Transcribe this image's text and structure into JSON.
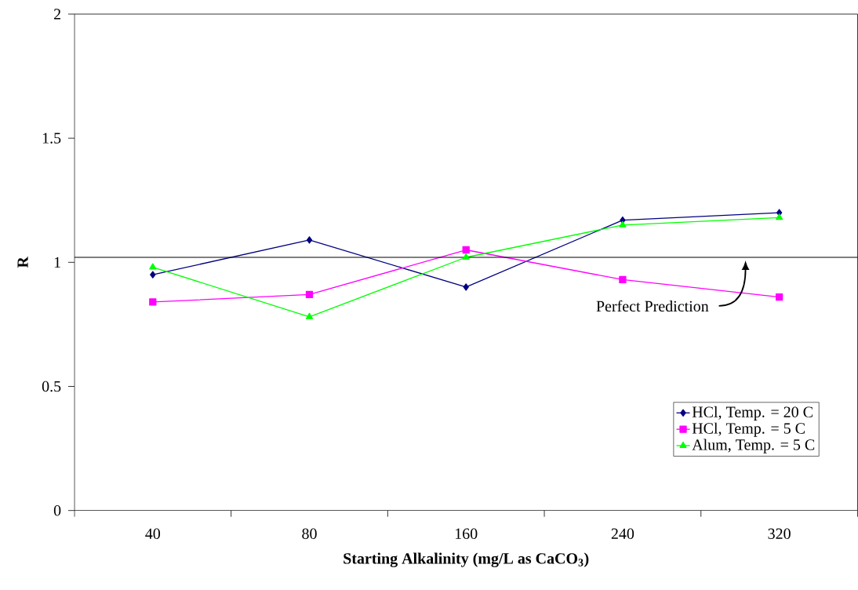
{
  "chart_data": {
    "type": "line",
    "xlabel": "Starting Alkalinity (mg/L as CaCO$_{3}$)",
    "ylabel": "R",
    "categories": [
      "40",
      "80",
      "160",
      "240",
      "320"
    ],
    "series": [
      {
        "name": "HCl, Temp. = 20 C",
        "color": "#000080",
        "marker": "diamond",
        "values": [
          0.95,
          1.09,
          0.9,
          1.17,
          1.2
        ]
      },
      {
        "name": "HCl, Temp. = 5 C",
        "color": "#ff00ff",
        "marker": "square",
        "values": [
          0.84,
          0.87,
          1.05,
          0.93,
          0.86
        ]
      },
      {
        "name": "Alum, Temp. = 5 C",
        "color": "#00ff00",
        "marker": "triangle",
        "values": [
          0.98,
          0.78,
          1.02,
          1.15,
          1.18
        ]
      }
    ],
    "ylim": [
      0,
      2
    ],
    "yticks": [
      0,
      0.5,
      1,
      1.5,
      2
    ],
    "ref_lines": [
      {
        "axis": "y",
        "value": 1.02,
        "label": "Perfect Prediction",
        "color": "#000000"
      }
    ],
    "grid": false,
    "legend": "bottom right",
    "line_style": "solid"
  }
}
